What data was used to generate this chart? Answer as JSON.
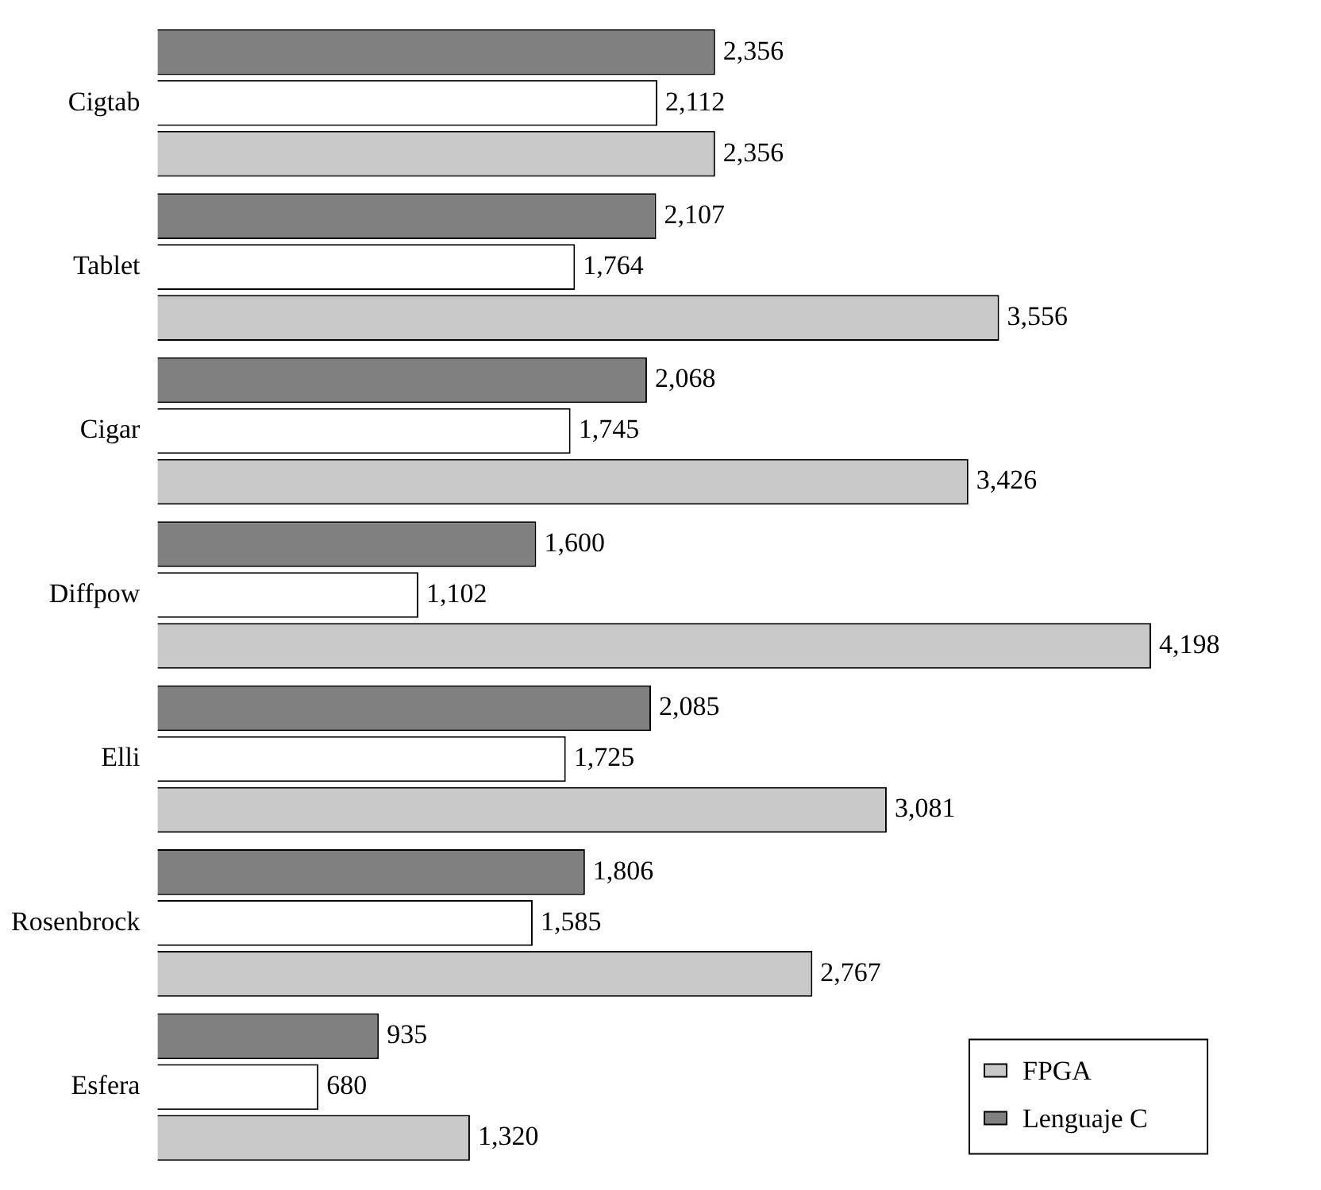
{
  "chart_data": {
    "type": "bar",
    "orientation": "horizontal",
    "categories": [
      "Cigtab",
      "Tablet",
      "Cigar",
      "Diffpow",
      "Elli",
      "Rosenbrock",
      "Esfera"
    ],
    "series": [
      {
        "name": "Lenguaje C",
        "color": "#808080",
        "values": [
          2356,
          2107,
          2068,
          1600,
          2085,
          1806,
          935
        ],
        "value_labels": [
          "2,356",
          "2,107",
          "2,068",
          "1,600",
          "2,085",
          "1,806",
          "935"
        ]
      },
      {
        "color": "#ffffff",
        "values": [
          2112,
          1764,
          1745,
          1102,
          1725,
          1585,
          680
        ],
        "value_labels": [
          "2,112",
          "1,764",
          "1,745",
          "1,102",
          "1,725",
          "1,585",
          "680"
        ]
      },
      {
        "name": "FPGA",
        "color": "#c8c8c8",
        "values": [
          2356,
          3556,
          3426,
          4198,
          3081,
          2767,
          1320
        ],
        "value_labels": [
          "2,356",
          "3,556",
          "3,426",
          "4,198",
          "3,081",
          "2,767",
          "1,320"
        ]
      }
    ],
    "tick_labels": "y",
    "legend": "bottom right"
  }
}
